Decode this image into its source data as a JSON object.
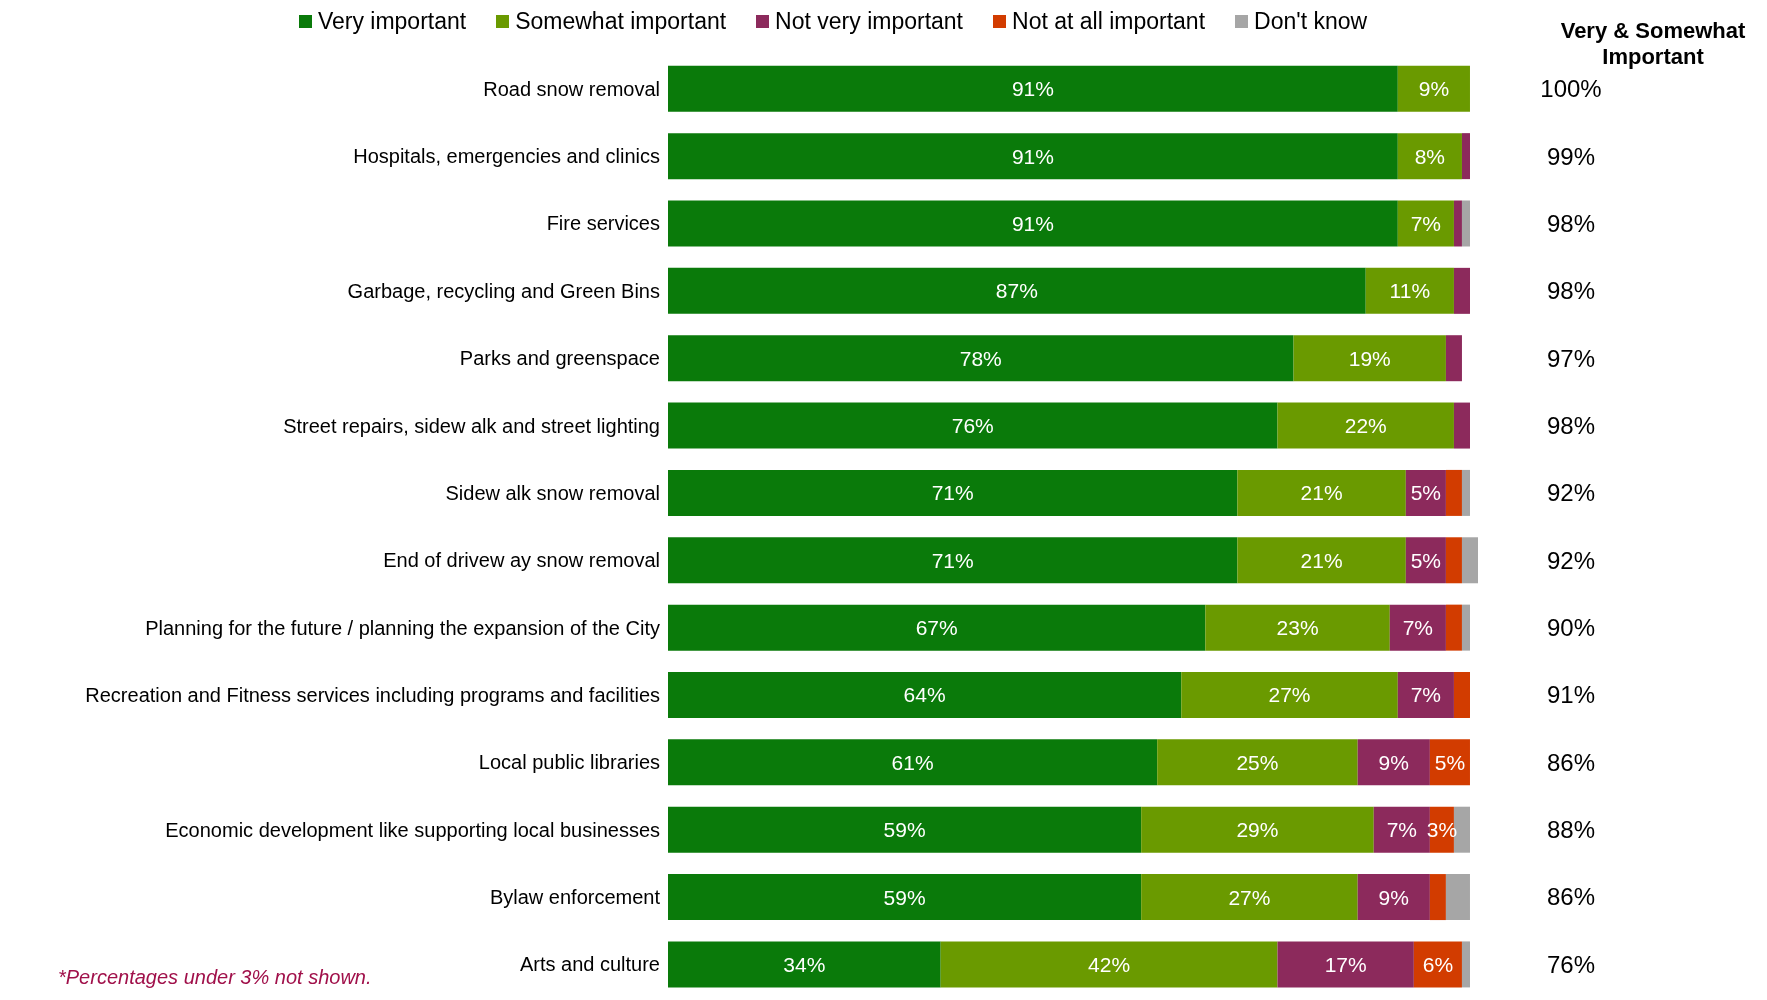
{
  "chart_data": {
    "type": "bar",
    "orientation": "horizontal",
    "stacked": true,
    "legend": "top",
    "data_labels": false,
    "categories": [
      "Road snow  removal",
      "Hospitals, emergencies and clinics",
      "Fire services",
      "Garbage, recycling and Green Bins",
      "Parks and greenspace",
      "Street repairs, sidew alk and street lighting",
      "Sidew alk snow  removal",
      "End of drivew ay snow  removal",
      "Planning for the future / planning the expansion of the City",
      "Recreation and Fitness services including programs and facilities",
      "Local public libraries",
      "Economic development like supporting local businesses",
      "Bylaw  enforcement",
      "Arts and culture"
    ],
    "series": [
      {
        "name": "Very important",
        "color": "#0a7a0a",
        "values": [
          91,
          91,
          91,
          87,
          78,
          76,
          71,
          71,
          67,
          64,
          61,
          59,
          59,
          34
        ],
        "value_labels": [
          "91%",
          "91%",
          "91%",
          "87%",
          "78%",
          "76%",
          "71%",
          "71%",
          "67%",
          "64%",
          "61%",
          "59%",
          "59%",
          "34%"
        ]
      },
      {
        "name": "Somewhat important",
        "color": "#6a9a00",
        "values": [
          9,
          8,
          7,
          11,
          19,
          22,
          21,
          21,
          23,
          27,
          25,
          29,
          27,
          42
        ],
        "value_labels": [
          "9%",
          "8%",
          "7%",
          "11%",
          "19%",
          "22%",
          "21%",
          "21%",
          "23%",
          "27%",
          "25%",
          "29%",
          "27%",
          "42%"
        ]
      },
      {
        "name": "Not very important",
        "color": "#8c2a5c",
        "values": [
          0,
          1,
          1,
          2,
          2,
          2,
          5,
          5,
          7,
          7,
          9,
          7,
          9,
          17
        ],
        "value_labels": [
          null,
          null,
          null,
          null,
          null,
          null,
          "5%",
          "5%",
          "7%",
          "7%",
          "9%",
          "7%",
          "9%",
          "17%"
        ]
      },
      {
        "name": "Not at all important",
        "color": "#d23c00",
        "values": [
          0,
          0,
          0,
          0,
          0,
          0,
          2,
          2,
          2,
          2,
          5,
          3,
          2,
          6
        ],
        "value_labels": [
          null,
          null,
          null,
          null,
          null,
          null,
          null,
          null,
          null,
          null,
          "5%",
          "3%",
          null,
          "6%"
        ]
      },
      {
        "name": "Don't know",
        "color": "#a6a6a6",
        "values": [
          0,
          0,
          1,
          0,
          0,
          0,
          1,
          2,
          1,
          0,
          0,
          2,
          3,
          1
        ],
        "value_labels": [
          null,
          null,
          null,
          null,
          null,
          null,
          null,
          null,
          null,
          null,
          null,
          null,
          null,
          null
        ]
      }
    ],
    "annotations": [
      "Very & Somewhat Important",
      "100%",
      "99%",
      "98%",
      "98%",
      "97%",
      "98%",
      "92%",
      "92%",
      "90%",
      "91%",
      "86%",
      "88%",
      "86%",
      "76%",
      "*Percentages under 3% not shown."
    ]
  }
}
